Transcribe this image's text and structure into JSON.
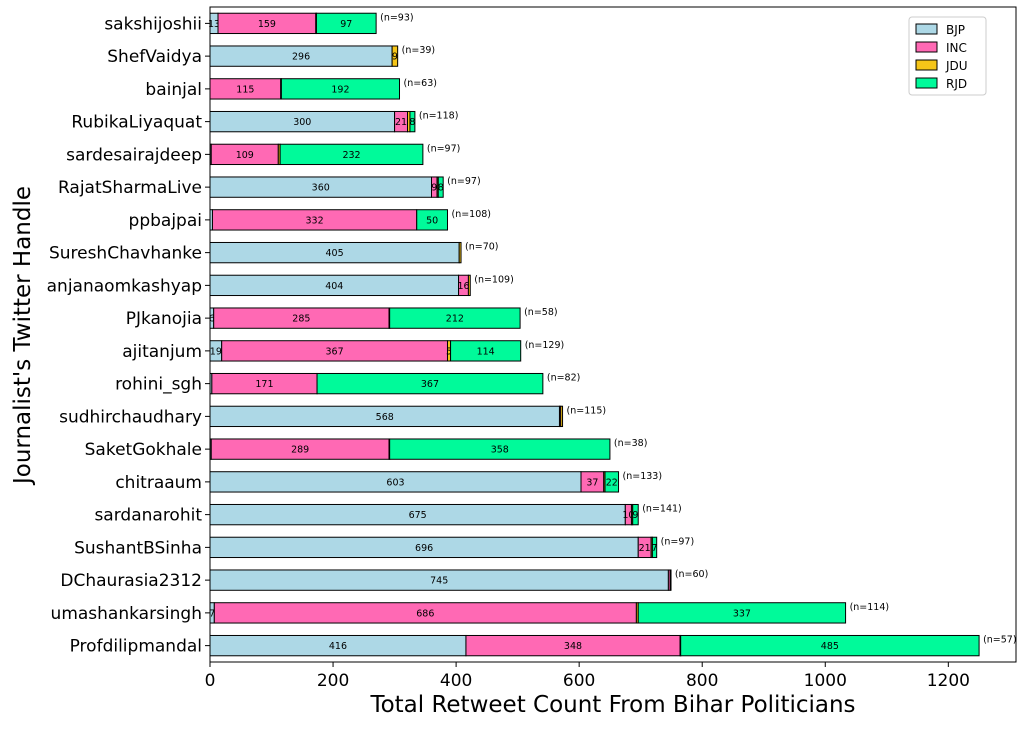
{
  "chart_data": {
    "type": "bar",
    "orientation": "horizontal",
    "stacked": true,
    "xlabel": "Total Retweet Count From Bihar Politicians",
    "ylabel": "Journalist's Twitter Handle",
    "xlim": [
      0,
      1310
    ],
    "xticks": [
      0,
      200,
      400,
      600,
      800,
      1000,
      1200
    ],
    "grid": false,
    "legend_position": "top-right",
    "categories": [
      "sakshijoshii",
      "ShefVaidya",
      "bainjal",
      "RubikaLiyaquat",
      "sardesairajdeep",
      "RajatSharmaLive",
      "ppbajpai",
      "SureshChavhanke",
      "anjanaomkashyap",
      "PJkanojia",
      "ajitanjum",
      "rohini_sgh",
      "sudhirchaudhary",
      "SaketGokhale",
      "chitraaum",
      "sardanarohit",
      "SushantBSinha",
      "DChaurasia2312",
      "umashankarsingh",
      "Profdilipmandal"
    ],
    "n_labels": [
      "(n=93)",
      "(n=39)",
      "(n=63)",
      "(n=118)",
      "(n=97)",
      "(n=97)",
      "(n=108)",
      "(n=70)",
      "(n=109)",
      "(n=58)",
      "(n=129)",
      "(n=82)",
      "(n=115)",
      "(n=38)",
      "(n=133)",
      "(n=141)",
      "(n=97)",
      "(n=60)",
      "(n=114)",
      "(n=57)"
    ],
    "series": [
      {
        "name": "BJP",
        "color": "#add8e6",
        "values": [
          13,
          296,
          0,
          300,
          2,
          360,
          4,
          405,
          404,
          6,
          19,
          3,
          568,
          2,
          603,
          675,
          696,
          745,
          7,
          416
        ]
      },
      {
        "name": "INC",
        "color": "#ff69b4",
        "values": [
          159,
          0,
          115,
          21,
          109,
          9,
          332,
          0,
          16,
          285,
          367,
          171,
          2,
          289,
          37,
          10,
          21,
          3,
          686,
          348
        ]
      },
      {
        "name": "JDU",
        "color": "#f5c518",
        "values": [
          1,
          9,
          1,
          4,
          3,
          2,
          0,
          3,
          3,
          1,
          5,
          0,
          3,
          1,
          2,
          2,
          2,
          1,
          3,
          1
        ]
      },
      {
        "name": "RJD",
        "color": "#00fa9a",
        "values": [
          97,
          0,
          192,
          8,
          232,
          8,
          50,
          0,
          0,
          212,
          114,
          367,
          0,
          358,
          22,
          9,
          7,
          0,
          337,
          485
        ]
      }
    ]
  }
}
